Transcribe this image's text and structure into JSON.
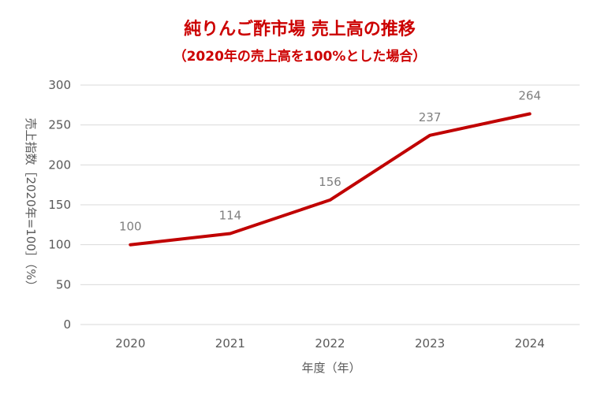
{
  "colors": {
    "title": "#cc0000",
    "line": "#c00000",
    "grid": "#d9d9d9",
    "axis_text": "#595959",
    "data_label": "#7f7f7f"
  },
  "chart_data": {
    "type": "line",
    "title": "純りんご酢市場 売上高の推移",
    "subtitle": "（2020年の売上高を100%とした場合）",
    "xlabel": "年度（年）",
    "ylabel": "売上指数［2020年=100］（%）",
    "categories": [
      "2020",
      "2021",
      "2022",
      "2023",
      "2024"
    ],
    "series": [
      {
        "values": [
          100,
          114,
          156,
          237,
          264
        ]
      }
    ],
    "ylim": [
      0,
      300
    ],
    "yticks": [
      0,
      50,
      100,
      150,
      200,
      250,
      300
    ],
    "ytick_labels": [
      "0",
      "50",
      "100",
      "150",
      "200",
      "250",
      "300"
    ],
    "data_labels": [
      "100",
      "114",
      "156",
      "237",
      "264"
    ],
    "grid": true,
    "legend": "none"
  }
}
